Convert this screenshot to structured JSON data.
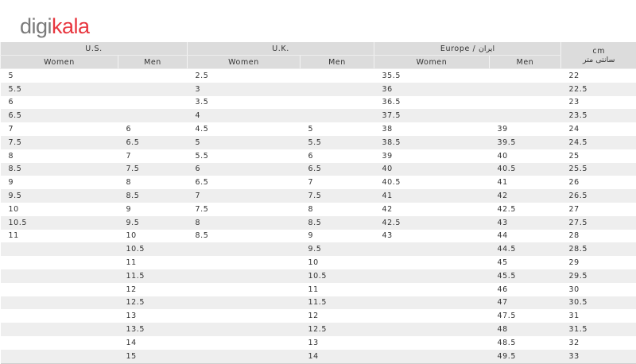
{
  "logo": {
    "part1": "digi",
    "part2": "kala",
    "colors": {
      "grey": "#7a7a7a",
      "red": "#e8363f"
    }
  },
  "header": {
    "us": "U.S.",
    "uk": "U.K.",
    "europe": "Europe / ایران",
    "cm_line1": "cm",
    "cm_line2": "سانتی متر",
    "women": "Women",
    "men": "Men"
  },
  "rows": [
    [
      "5",
      "",
      "2.5",
      "",
      "35.5",
      "",
      "22"
    ],
    [
      "5.5",
      "",
      "3",
      "",
      "36",
      "",
      "22.5"
    ],
    [
      "6",
      "",
      "3.5",
      "",
      "36.5",
      "",
      "23"
    ],
    [
      "6.5",
      "",
      "4",
      "",
      "37.5",
      "",
      "23.5"
    ],
    [
      "7",
      "6",
      "4.5",
      "5",
      "38",
      "39",
      "24"
    ],
    [
      "7.5",
      "6.5",
      "5",
      "5.5",
      "38.5",
      "39.5",
      "24.5"
    ],
    [
      "8",
      "7",
      "5.5",
      "6",
      "39",
      "40",
      "25"
    ],
    [
      "8.5",
      "7.5",
      "6",
      "6.5",
      "40",
      "40.5",
      "25.5"
    ],
    [
      "9",
      "8",
      "6.5",
      "7",
      "40.5",
      "41",
      "26"
    ],
    [
      "9.5",
      "8.5",
      "7",
      "7.5",
      "41",
      "42",
      "26.5"
    ],
    [
      "10",
      "9",
      "7.5",
      "8",
      "42",
      "42.5",
      "27"
    ],
    [
      "10.5",
      "9.5",
      "8",
      "8.5",
      "42.5",
      "43",
      "27.5"
    ],
    [
      "11",
      "10",
      "8.5",
      "9",
      "43",
      "44",
      "28"
    ],
    [
      "",
      "10.5",
      "",
      "9.5",
      "",
      "44.5",
      "28.5"
    ],
    [
      "",
      "11",
      "",
      "10",
      "",
      "45",
      "29"
    ],
    [
      "",
      "11.5",
      "",
      "10.5",
      "",
      "45.5",
      "29.5"
    ],
    [
      "",
      "12",
      "",
      "11",
      "",
      "46",
      "30"
    ],
    [
      "",
      "12.5",
      "",
      "11.5",
      "",
      "47",
      "30.5"
    ],
    [
      "",
      "13",
      "",
      "12",
      "",
      "47.5",
      "31"
    ],
    [
      "",
      "13.5",
      "",
      "12.5",
      "",
      "48",
      "31.5"
    ],
    [
      "",
      "14",
      "",
      "13",
      "",
      "48.5",
      "32"
    ],
    [
      "",
      "15",
      "",
      "14",
      "",
      "49.5",
      "33"
    ]
  ]
}
